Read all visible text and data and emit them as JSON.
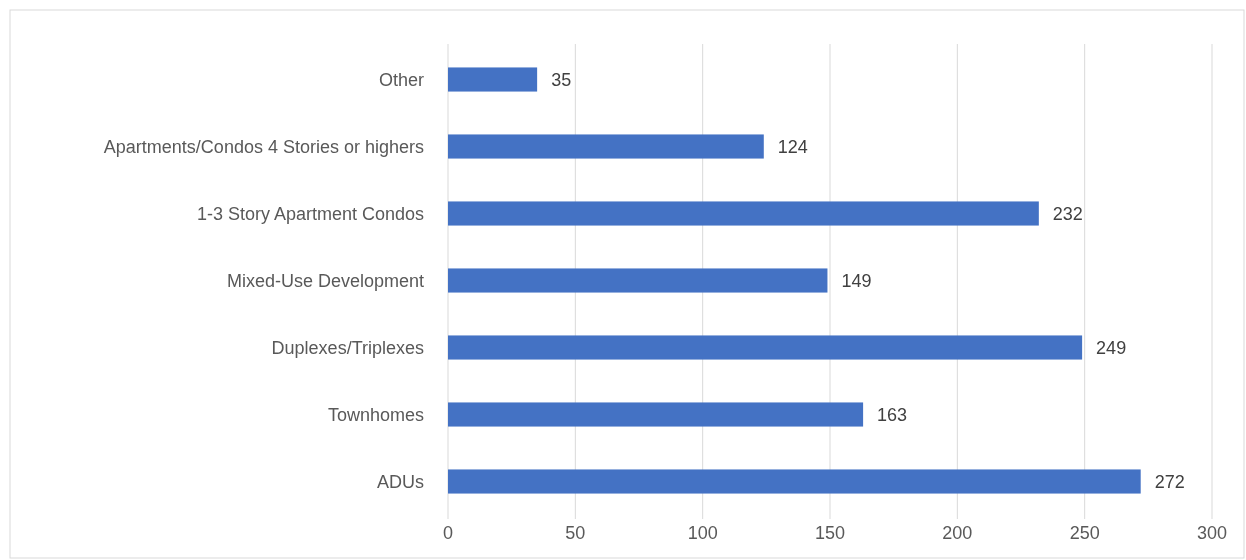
{
  "chart_data": {
    "type": "bar",
    "orientation": "horizontal",
    "categories": [
      "Other",
      "Apartments/Condos 4 Stories or highers",
      "1-3 Story Apartment Condos",
      "Mixed-Use Development",
      "Duplexes/Triplexes",
      "Townhomes",
      "ADUs"
    ],
    "values": [
      35,
      124,
      232,
      149,
      249,
      163,
      272
    ],
    "color": "#4472c4",
    "xlim": [
      0,
      300
    ],
    "xticks": [
      0,
      50,
      100,
      150,
      200,
      250,
      300
    ],
    "grid": "x",
    "data_labels": true
  }
}
